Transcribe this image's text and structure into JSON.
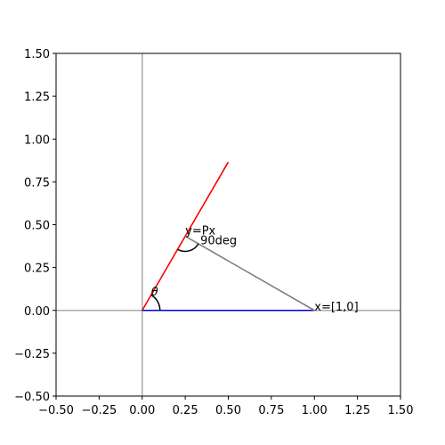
{
  "chart_data": {
    "type": "line",
    "segments": [
      {
        "color": "#ff0000",
        "x": [
          0,
          0.5
        ],
        "y": [
          0,
          0.866
        ]
      },
      {
        "color": "#0000cc",
        "x": [
          0,
          1
        ],
        "y": [
          0,
          0
        ]
      },
      {
        "color": "#808080",
        "x": [
          1,
          0.25
        ],
        "y": [
          0,
          0.433
        ]
      }
    ],
    "annotations": [
      "x=[1,0]",
      "y=Px",
      "90deg",
      "θ"
    ],
    "xlim": [
      -0.5,
      1.5
    ],
    "ylim": [
      -0.5,
      1.5
    ],
    "xticks": [
      {
        "value": -0.5,
        "label": "−0.50"
      },
      {
        "value": -0.25,
        "label": "−0.25"
      },
      {
        "value": 0,
        "label": "0.00"
      },
      {
        "value": 0.25,
        "label": "0.25"
      },
      {
        "value": 0.5,
        "label": "0.50"
      },
      {
        "value": 0.75,
        "label": "0.75"
      },
      {
        "value": 1,
        "label": "1.00"
      },
      {
        "value": 1.25,
        "label": "1.25"
      },
      {
        "value": 1.5,
        "label": "1.50"
      }
    ],
    "yticks": [
      {
        "value": -0.5,
        "label": "−0.50"
      },
      {
        "value": -0.25,
        "label": "−0.25"
      },
      {
        "value": 0,
        "label": "0.00"
      },
      {
        "value": 0.25,
        "label": "0.25"
      },
      {
        "value": 0.5,
        "label": "0.50"
      },
      {
        "value": 0.75,
        "label": "0.75"
      },
      {
        "value": 1,
        "label": "1.00"
      },
      {
        "value": 1.25,
        "label": "1.25"
      },
      {
        "value": 1.5,
        "label": "1.50"
      }
    ],
    "grid": false
  }
}
